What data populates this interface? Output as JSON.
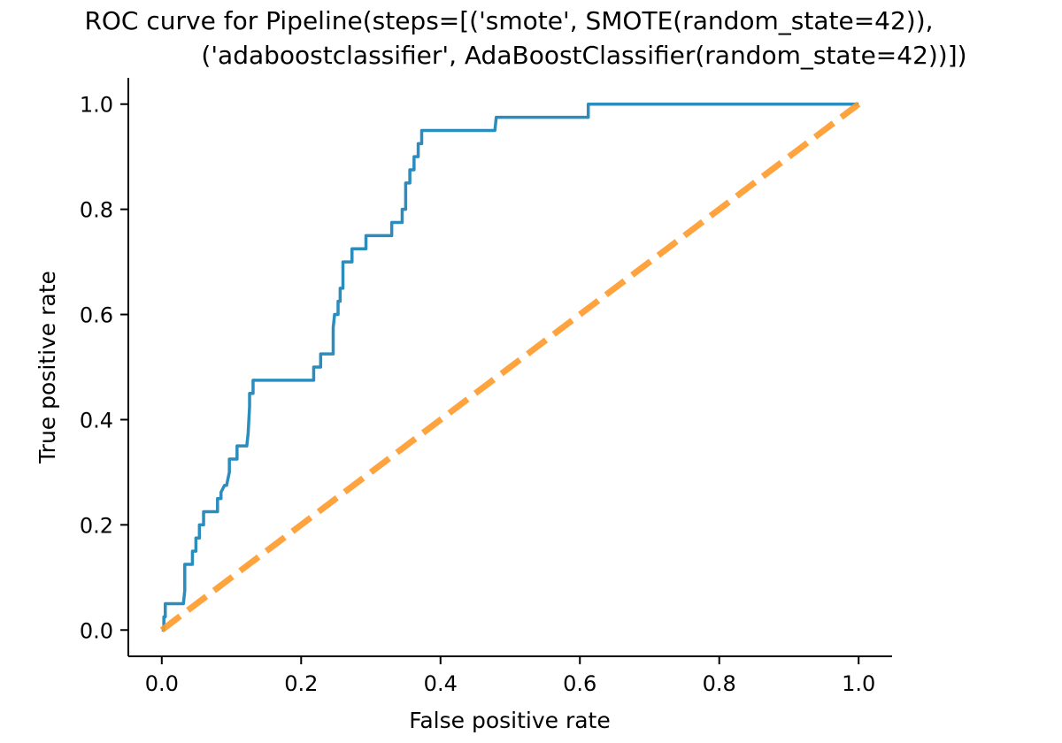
{
  "chart_data": {
    "type": "line",
    "title_lines": [
      "ROC curve for Pipeline(steps=[('smote', SMOTE(random_state=42)),",
      "('adaboostclassifier', AdaBoostClassifier(random_state=42))])"
    ],
    "xlabel": "False positive rate",
    "ylabel": "True positive rate",
    "xlim": [
      -0.048,
      1.048
    ],
    "ylim": [
      -0.05,
      1.05
    ],
    "xticks": [
      0.0,
      0.2,
      0.4,
      0.6,
      0.8,
      1.0
    ],
    "xtick_labels": [
      "0.0",
      "0.2",
      "0.4",
      "0.6",
      "0.8",
      "1.0"
    ],
    "yticks": [
      0.0,
      0.2,
      0.4,
      0.6,
      0.8,
      1.0
    ],
    "ytick_labels": [
      "0.0",
      "0.2",
      "0.4",
      "0.6",
      "0.8",
      "1.0"
    ],
    "grid": false,
    "series": [
      {
        "color": "#2b8cbe",
        "style": "solid",
        "x": [
          0.0,
          0.003,
          0.003,
          0.005,
          0.005,
          0.031,
          0.033,
          0.033,
          0.044,
          0.044,
          0.049,
          0.049,
          0.054,
          0.054,
          0.06,
          0.06,
          0.08,
          0.08,
          0.085,
          0.085,
          0.09,
          0.093,
          0.097,
          0.097,
          0.108,
          0.108,
          0.122,
          0.124,
          0.125,
          0.126,
          0.126,
          0.131,
          0.131,
          0.218,
          0.218,
          0.228,
          0.228,
          0.246,
          0.246,
          0.248,
          0.25,
          0.253,
          0.253,
          0.256,
          0.256,
          0.26,
          0.26,
          0.273,
          0.273,
          0.293,
          0.293,
          0.33,
          0.33,
          0.345,
          0.345,
          0.35,
          0.35,
          0.356,
          0.356,
          0.362,
          0.362,
          0.368,
          0.368,
          0.373,
          0.373,
          0.379,
          0.379,
          0.478,
          0.48,
          0.48,
          0.61,
          0.612,
          0.612,
          1.0
        ],
        "y": [
          0.0,
          0.0,
          0.025,
          0.025,
          0.05,
          0.05,
          0.075,
          0.125,
          0.125,
          0.15,
          0.15,
          0.175,
          0.175,
          0.2,
          0.2,
          0.225,
          0.225,
          0.25,
          0.25,
          0.262,
          0.275,
          0.275,
          0.3,
          0.325,
          0.325,
          0.35,
          0.35,
          0.375,
          0.4,
          0.425,
          0.45,
          0.45,
          0.475,
          0.475,
          0.5,
          0.5,
          0.525,
          0.525,
          0.575,
          0.6,
          0.6,
          0.6,
          0.625,
          0.625,
          0.65,
          0.65,
          0.7,
          0.7,
          0.725,
          0.725,
          0.75,
          0.75,
          0.775,
          0.775,
          0.8,
          0.8,
          0.85,
          0.85,
          0.875,
          0.875,
          0.9,
          0.9,
          0.925,
          0.925,
          0.95,
          0.95,
          0.95,
          0.95,
          0.975,
          0.975,
          0.975,
          0.975,
          1.0,
          1.0
        ]
      },
      {
        "color": "#fe9929",
        "style": "dashed",
        "x": [
          0.0,
          1.0
        ],
        "y": [
          0.0,
          1.0
        ]
      }
    ]
  }
}
